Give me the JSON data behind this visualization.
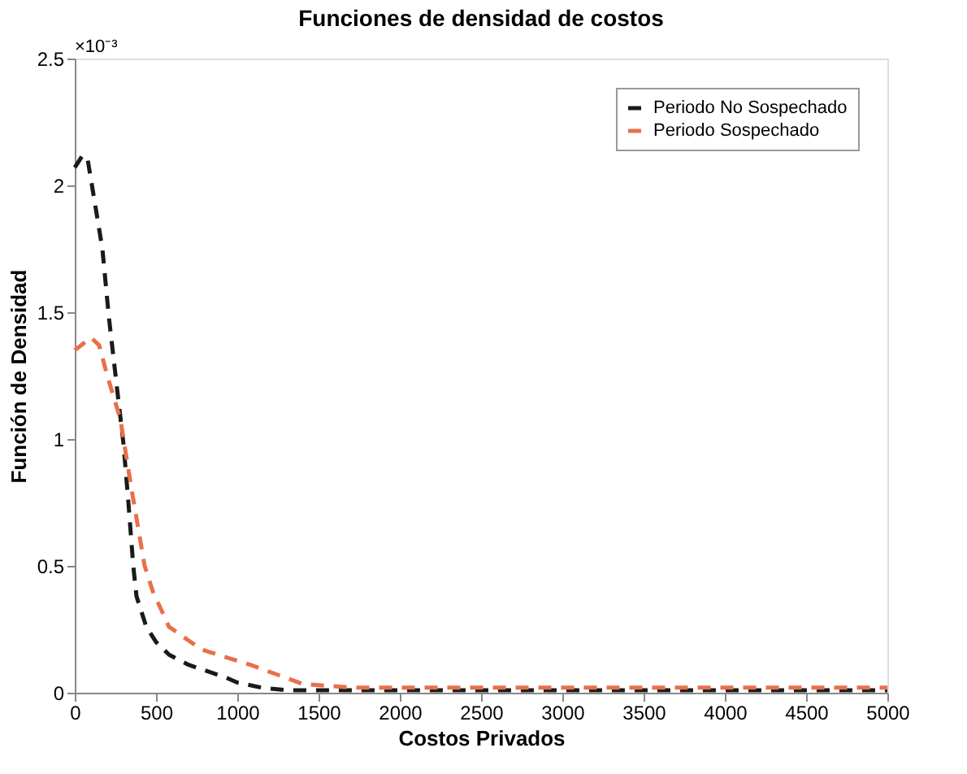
{
  "chart_data": {
    "type": "line",
    "title": "Funciones de densidad de costos",
    "xlabel": "Costos Privados",
    "ylabel": "Función de Densidad",
    "annotations": [
      "×10⁻³"
    ],
    "xlim": [
      0,
      5000
    ],
    "xticks": [
      0,
      500,
      1000,
      1500,
      2000,
      2500,
      3000,
      3500,
      4000,
      4500,
      5000
    ],
    "ylim": [
      0,
      2.5
    ],
    "yticks": [
      0,
      0.5,
      1,
      1.5,
      2,
      2.5
    ],
    "grid": false,
    "legend": "top right",
    "line_style": "dashed",
    "marker": "none",
    "series": [
      {
        "name": "Periodo No Sospechado",
        "color": "#1a1a1a",
        "x": [
          0,
          50,
          80,
          170,
          210,
          260,
          300,
          330,
          360,
          380,
          440,
          500,
          580,
          700,
          930,
          1000,
          1150,
          1300,
          1500,
          2000,
          2500,
          3000,
          3500,
          4000,
          4500,
          5000
        ],
        "values": [
          2.07,
          2.12,
          2.1,
          1.75,
          1.48,
          1.2,
          0.98,
          0.75,
          0.5,
          0.38,
          0.26,
          0.2,
          0.15,
          0.11,
          0.06,
          0.04,
          0.02,
          0.01,
          0.01,
          0.01,
          0.01,
          0.01,
          0.01,
          0.01,
          0.01,
          0.01
        ]
      },
      {
        "name": "Periodo Sospechado",
        "color": "#e8704a",
        "x": [
          0,
          100,
          150,
          200,
          280,
          350,
          430,
          480,
          580,
          780,
          1080,
          1400,
          1700,
          2000,
          2500,
          3000,
          3500,
          4000,
          4500,
          5000
        ],
        "values": [
          1.35,
          1.4,
          1.37,
          1.25,
          1.08,
          0.8,
          0.5,
          0.4,
          0.26,
          0.17,
          0.11,
          0.035,
          0.02,
          0.02,
          0.02,
          0.02,
          0.02,
          0.02,
          0.02,
          0.02
        ]
      }
    ]
  }
}
